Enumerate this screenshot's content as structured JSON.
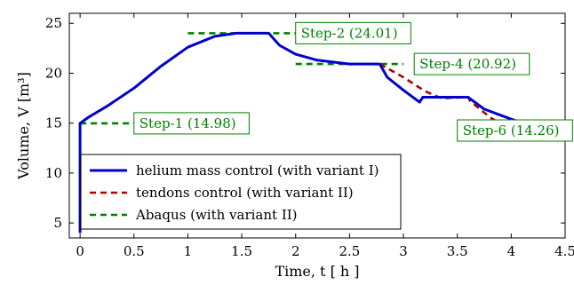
{
  "chart_data": {
    "type": "line",
    "xlabel": "Time, t [ h ]",
    "ylabel": "Volume, V [m³]",
    "xlim": [
      -0.1,
      4.5
    ],
    "ylim": [
      3.5,
      26
    ],
    "xticks": [
      0,
      0.5,
      1,
      1.5,
      2,
      2.5,
      3,
      3.5,
      4,
      4.5
    ],
    "xtick_labels": [
      "0",
      "0.5",
      "1",
      "1.5",
      "2",
      "2.5",
      "3",
      "3.5",
      "4",
      "4.5"
    ],
    "yticks": [
      5,
      10,
      15,
      20,
      25
    ],
    "ytick_labels": [
      "5",
      "10",
      "15",
      "20",
      "25"
    ],
    "grid": false,
    "legend_position": "bottom-left",
    "series": [
      {
        "name": "helium mass control (with variant I)",
        "color": "#0000cc",
        "style": "solid",
        "x": [
          0,
          0,
          0.08,
          0.25,
          0.5,
          0.75,
          1.0,
          1.25,
          1.45,
          1.6,
          1.75,
          1.85,
          2.0,
          2.2,
          2.5,
          2.78,
          2.85,
          3.0,
          3.15,
          3.18,
          3.3,
          3.5,
          3.6,
          3.75,
          4.0,
          4.25,
          4.4
        ],
        "y": [
          4.0,
          14.98,
          15.6,
          16.7,
          18.5,
          20.7,
          22.6,
          23.7,
          24.01,
          24.01,
          24.01,
          22.8,
          21.9,
          21.3,
          20.92,
          20.92,
          19.6,
          18.3,
          17.1,
          17.6,
          17.6,
          17.6,
          17.6,
          16.4,
          15.4,
          14.5,
          14.1
        ]
      },
      {
        "name": "tendons control (with variant II)",
        "color": "#b00000",
        "style": "dashed",
        "x": [
          2.78,
          3.0,
          3.2,
          3.35,
          3.6,
          3.62,
          3.8,
          4.0,
          4.2,
          4.5
        ],
        "y": [
          20.92,
          19.6,
          18.2,
          17.5,
          17.6,
          17.2,
          15.6,
          14.3,
          13.9,
          13.9
        ]
      },
      {
        "name": "Abaqus (with variant II)",
        "color": "#008000",
        "style": "dashed",
        "segments": [
          {
            "x": [
              0,
              0.5
            ],
            "y": [
              14.98,
              14.98
            ]
          },
          {
            "x": [
              1.0,
              2.0
            ],
            "y": [
              24.01,
              24.01
            ]
          },
          {
            "x": [
              2.0,
              3.0
            ],
            "y": [
              20.92,
              20.92
            ]
          },
          {
            "x": [
              3.5,
              4.5
            ],
            "y": [
              14.26,
              14.26
            ]
          }
        ]
      }
    ],
    "annotations": [
      {
        "text": "Step-1 (14.98)",
        "x": 0.5,
        "y": 14.98
      },
      {
        "text": "Step-2 (24.01)",
        "x": 2.0,
        "y": 24.01
      },
      {
        "text": "Step-4 (20.92)",
        "x": 3.1,
        "y": 20.92
      },
      {
        "text": "Step-6 (14.26)",
        "x": 3.5,
        "y": 14.26
      }
    ]
  }
}
